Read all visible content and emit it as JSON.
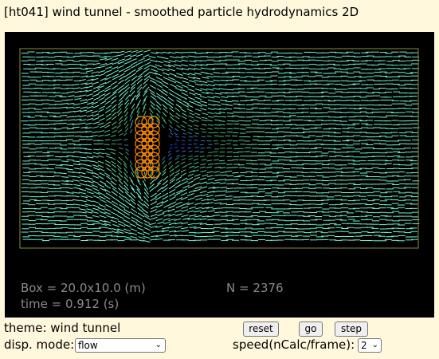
{
  "title": "[ht041] wind tunnel - smoothed particle hydrodynamics 2D",
  "sim": {
    "box": "Box = 20.0x10.0 (m)",
    "time": "time = 0.912 (s)",
    "n": "N = 2376",
    "colors": {
      "background": "#000000",
      "frame": "#8b8b3a",
      "obstacle": "#ff8c00",
      "flow_fast": "#7fffd4",
      "flow_mid": "#3cb371",
      "flow_slow": "#1e3cff"
    }
  },
  "controls": {
    "theme": "theme: wind tunnel",
    "mode_label": "disp. mode:",
    "mode_value": "flow",
    "reset": "reset",
    "go": "go",
    "step": "step",
    "speed_label": "speed(nCalc/frame):",
    "speed_value": "2"
  }
}
